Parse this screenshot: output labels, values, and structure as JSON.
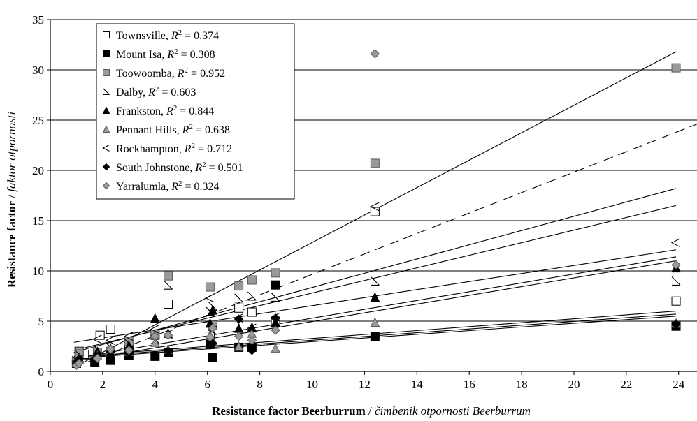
{
  "chart_data": {
    "type": "scatter",
    "xlabel_bold": "Resistance factor Beerburrum",
    "xlabel_sep": " / ",
    "xlabel_italic": "čimbenik otpornosti Beerburrum",
    "ylabel_bold": "Resistance factor",
    "ylabel_sep": " / ",
    "ylabel_italic": "faktor otpornosti",
    "xlim": [
      0,
      24.7
    ],
    "ylim": [
      0,
      35
    ],
    "xticks": [
      0,
      2,
      4,
      6,
      8,
      10,
      12,
      14,
      16,
      18,
      20,
      22,
      24
    ],
    "yticks": [
      0,
      5,
      10,
      15,
      20,
      25,
      30,
      35
    ],
    "grid": "horizontal",
    "legend_position": "top-left",
    "series": [
      {
        "name": "Townsville",
        "r2": "0.374",
        "marker": "square-open",
        "points": [
          [
            1.0,
            1.0
          ],
          [
            1.1,
            2.0
          ],
          [
            1.3,
            1.7
          ],
          [
            1.9,
            3.6
          ],
          [
            2.3,
            4.2
          ],
          [
            3.0,
            2.2
          ],
          [
            4.0,
            3.6
          ],
          [
            4.5,
            6.7
          ],
          [
            6.1,
            3.5
          ],
          [
            7.2,
            6.3
          ],
          [
            7.7,
            5.9
          ],
          [
            8.6,
            5.0
          ],
          [
            12.4,
            15.9
          ],
          [
            23.9,
            7.0
          ]
        ]
      },
      {
        "name": "Mount Isa",
        "r2": "0.308",
        "marker": "square-filled",
        "points": [
          [
            1.0,
            0.8
          ],
          [
            1.1,
            1.8
          ],
          [
            1.7,
            0.9
          ],
          [
            2.3,
            1.1
          ],
          [
            3.0,
            1.6
          ],
          [
            4.0,
            1.5
          ],
          [
            4.5,
            1.9
          ],
          [
            6.1,
            2.7
          ],
          [
            6.2,
            1.4
          ],
          [
            7.2,
            2.4
          ],
          [
            7.7,
            2.4
          ],
          [
            8.6,
            8.6
          ],
          [
            12.4,
            3.5
          ],
          [
            23.9,
            4.5
          ]
        ]
      },
      {
        "name": "Toowoomba",
        "r2": "0.952",
        "marker": "square-gray",
        "points": [
          [
            1.0,
            1.0
          ],
          [
            1.1,
            1.8
          ],
          [
            1.8,
            1.9
          ],
          [
            2.3,
            2.0
          ],
          [
            3.0,
            3.0
          ],
          [
            4.0,
            3.7
          ],
          [
            4.5,
            9.5
          ],
          [
            6.1,
            8.4
          ],
          [
            6.2,
            4.6
          ],
          [
            7.2,
            8.5
          ],
          [
            7.7,
            9.1
          ],
          [
            8.6,
            9.8
          ],
          [
            12.4,
            20.7
          ],
          [
            23.9,
            30.2
          ]
        ]
      },
      {
        "name": "Dalby",
        "r2": "0.603",
        "marker": "triangle-open",
        "points": [
          [
            1.0,
            1.1
          ],
          [
            1.1,
            1.7
          ],
          [
            1.8,
            2.2
          ],
          [
            2.3,
            2.4
          ],
          [
            3.0,
            2.8
          ],
          [
            4.0,
            3.2
          ],
          [
            4.5,
            8.6
          ],
          [
            6.1,
            6.0
          ],
          [
            6.2,
            6.5
          ],
          [
            7.2,
            7.3
          ],
          [
            7.7,
            7.5
          ],
          [
            8.6,
            7.4
          ],
          [
            12.4,
            9.0
          ],
          [
            23.9,
            9.0
          ]
        ]
      },
      {
        "name": "Frankston",
        "r2": "0.844",
        "marker": "triangle-filled",
        "points": [
          [
            1.0,
            0.9
          ],
          [
            1.1,
            1.4
          ],
          [
            1.8,
            2.0
          ],
          [
            2.3,
            2.3
          ],
          [
            3.0,
            2.6
          ],
          [
            4.0,
            5.3
          ],
          [
            4.5,
            3.8
          ],
          [
            6.1,
            4.8
          ],
          [
            6.2,
            6.1
          ],
          [
            7.2,
            4.3
          ],
          [
            7.7,
            4.4
          ],
          [
            8.6,
            4.9
          ],
          [
            12.4,
            7.4
          ],
          [
            23.9,
            10.3
          ]
        ]
      },
      {
        "name": "Pennant Hills",
        "r2": "0.638",
        "marker": "triangle-gray",
        "points": [
          [
            1.0,
            0.9
          ],
          [
            1.1,
            1.3
          ],
          [
            1.8,
            1.6
          ],
          [
            2.3,
            1.9
          ],
          [
            3.0,
            2.0
          ],
          [
            4.0,
            2.9
          ],
          [
            4.5,
            2.2
          ],
          [
            6.1,
            3.6
          ],
          [
            6.2,
            3.0
          ],
          [
            7.2,
            2.5
          ],
          [
            7.7,
            3.8
          ],
          [
            8.6,
            2.3
          ],
          [
            12.4,
            4.9
          ],
          [
            23.9,
            4.8
          ]
        ]
      },
      {
        "name": "Rockhampton",
        "r2": "0.712",
        "marker": "diamond-open",
        "points": [
          [
            1.0,
            1.0
          ],
          [
            1.1,
            1.2
          ],
          [
            1.8,
            3.2
          ],
          [
            2.3,
            3.1
          ],
          [
            3.0,
            3.5
          ],
          [
            4.0,
            4.2
          ],
          [
            4.5,
            3.7
          ],
          [
            6.1,
            7.3
          ],
          [
            6.2,
            4.1
          ],
          [
            7.2,
            5.3
          ],
          [
            7.7,
            4.3
          ],
          [
            8.6,
            5.4
          ],
          [
            12.4,
            16.4
          ],
          [
            23.9,
            12.8
          ]
        ]
      },
      {
        "name": "South Johnstone",
        "r2": "0.501",
        "marker": "diamond-filled",
        "points": [
          [
            1.0,
            0.8
          ],
          [
            1.1,
            1.2
          ],
          [
            1.8,
            1.5
          ],
          [
            2.3,
            1.6
          ],
          [
            3.0,
            1.8
          ],
          [
            4.0,
            1.6
          ],
          [
            4.5,
            2.0
          ],
          [
            6.1,
            2.6
          ],
          [
            6.2,
            2.8
          ],
          [
            7.2,
            5.2
          ],
          [
            7.7,
            2.1
          ],
          [
            8.6,
            5.3
          ],
          [
            12.4,
            3.5
          ],
          [
            23.9,
            4.7
          ]
        ]
      },
      {
        "name": "Yarralumla",
        "r2": "0.324",
        "marker": "diamond-gray",
        "points": [
          [
            1.0,
            0.6
          ],
          [
            1.1,
            0.8
          ],
          [
            1.8,
            1.3
          ],
          [
            2.3,
            2.2
          ],
          [
            3.0,
            2.1
          ],
          [
            4.0,
            3.5
          ],
          [
            4.5,
            3.6
          ],
          [
            6.1,
            3.4
          ],
          [
            6.2,
            4.3
          ],
          [
            7.2,
            3.5
          ],
          [
            7.7,
            3.1
          ],
          [
            8.6,
            4.1
          ],
          [
            12.4,
            31.6
          ],
          [
            23.9,
            10.6
          ]
        ]
      }
    ],
    "trendlines": [
      {
        "from": [
          0.9,
          0.4
        ],
        "to": [
          23.9,
          31.8
        ],
        "dash": false
      },
      {
        "from": [
          0.9,
          0.4
        ],
        "to": [
          24.7,
          24.6
        ],
        "dash": true
      },
      {
        "from": [
          0.9,
          1.9
        ],
        "to": [
          23.9,
          18.2
        ],
        "dash": false
      },
      {
        "from": [
          0.9,
          2.1
        ],
        "to": [
          23.9,
          16.5
        ],
        "dash": false
      },
      {
        "from": [
          0.9,
          2.9
        ],
        "to": [
          23.9,
          12.1
        ],
        "dash": false
      },
      {
        "from": [
          0.9,
          1.3
        ],
        "to": [
          23.9,
          11.4
        ],
        "dash": false
      },
      {
        "from": [
          0.9,
          1.0
        ],
        "to": [
          23.9,
          11.0
        ],
        "dash": false
      },
      {
        "from": [
          0.9,
          1.5
        ],
        "to": [
          23.9,
          6.0
        ],
        "dash": false
      },
      {
        "from": [
          0.9,
          1.4
        ],
        "to": [
          23.9,
          5.7
        ],
        "dash": false
      },
      {
        "from": [
          0.9,
          1.3
        ],
        "to": [
          23.9,
          5.5
        ],
        "dash": false
      }
    ],
    "legend": {
      "r_symbol": "R",
      "sup": "2",
      "eq": " = "
    }
  }
}
